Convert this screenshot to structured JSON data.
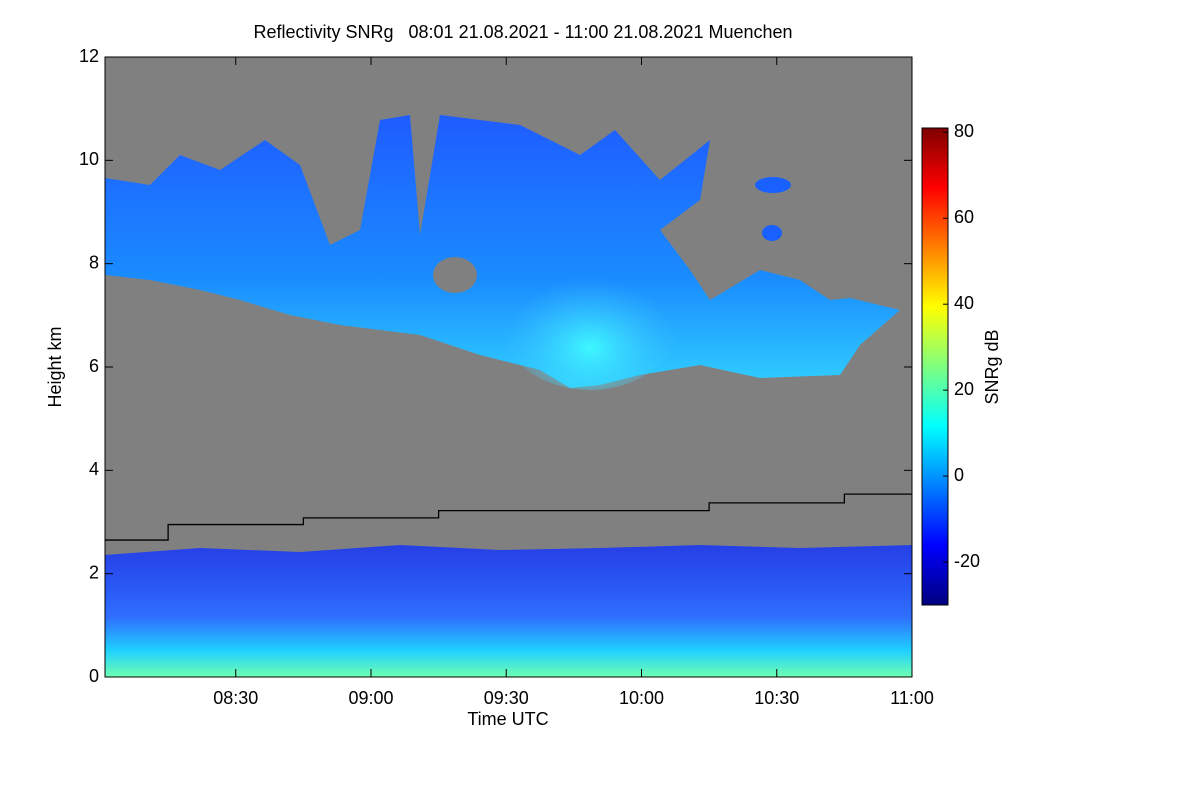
{
  "chart_data": {
    "type": "heatmap",
    "title": "Reflectivity SNRg   08:01 21.08.2021 - 11:00 21.08.2021 Muenchen",
    "xlabel": "Time UTC",
    "ylabel": "Height km",
    "xlim": [
      481,
      660
    ],
    "xticks": [
      {
        "value": 510,
        "label": "08:30"
      },
      {
        "value": 540,
        "label": "09:00"
      },
      {
        "value": 570,
        "label": "09:30"
      },
      {
        "value": 600,
        "label": "10:00"
      },
      {
        "value": 630,
        "label": "10:30"
      },
      {
        "value": 660,
        "label": "11:00"
      }
    ],
    "ylim": [
      0,
      12
    ],
    "yticks": [
      0,
      2,
      4,
      6,
      8,
      10,
      12
    ],
    "background": "#808080",
    "line": {
      "color": "#000000",
      "x": [
        481,
        495,
        495,
        525,
        525,
        555,
        555,
        615,
        615,
        645,
        645,
        660
      ],
      "y": [
        2.65,
        2.65,
        2.95,
        2.95,
        3.08,
        3.08,
        3.22,
        3.22,
        3.37,
        3.37,
        3.54,
        3.54
      ]
    },
    "colorbar": {
      "label": "SNRg dB",
      "clim": [
        -30,
        81
      ],
      "ticks": [
        -20,
        0,
        20,
        40,
        60,
        80
      ],
      "colors": [
        "#00007f",
        "#0000ff",
        "#007fff",
        "#00ffff",
        "#7fff7f",
        "#ffff00",
        "#ff7f00",
        "#ff0000",
        "#7f0000"
      ]
    }
  }
}
